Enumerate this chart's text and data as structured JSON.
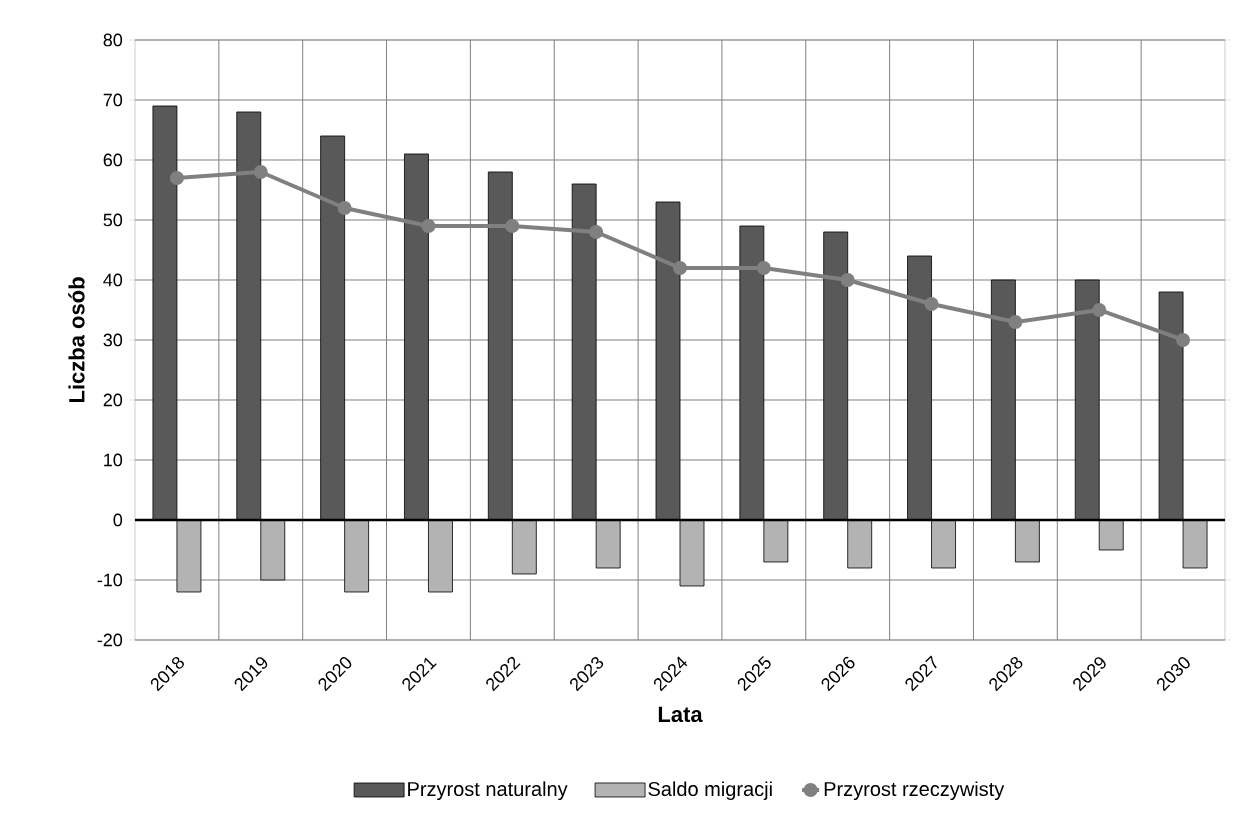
{
  "chart_data": {
    "type": "bar",
    "xlabel": "Lata",
    "ylabel": "Liczba osób",
    "categories": [
      "2018",
      "2019",
      "2020",
      "2021",
      "2022",
      "2023",
      "2024",
      "2025",
      "2026",
      "2027",
      "2028",
      "2029",
      "2030"
    ],
    "series": [
      {
        "name": "Przyrost naturalny",
        "color": "#595959",
        "values": [
          69,
          68,
          64,
          61,
          58,
          56,
          53,
          49,
          48,
          44,
          40,
          40,
          38
        ]
      },
      {
        "name": "Saldo migracji",
        "color": "#b3b3b3",
        "values": [
          -12,
          -10,
          -12,
          -12,
          -9,
          -8,
          -11,
          -7,
          -8,
          -8,
          -7,
          -5,
          -8
        ]
      },
      {
        "name": "Przyrost rzeczywisty",
        "color": "#808080",
        "type": "line",
        "marker": "circle",
        "values": [
          57,
          58,
          52,
          49,
          49,
          48,
          42,
          42,
          40,
          36,
          33,
          35,
          30
        ]
      }
    ],
    "ylim": [
      -20,
      80
    ],
    "yticks": [
      -20,
      -10,
      0,
      10,
      20,
      30,
      40,
      50,
      60,
      70,
      80
    ],
    "grid": true,
    "legend": "bottom"
  }
}
